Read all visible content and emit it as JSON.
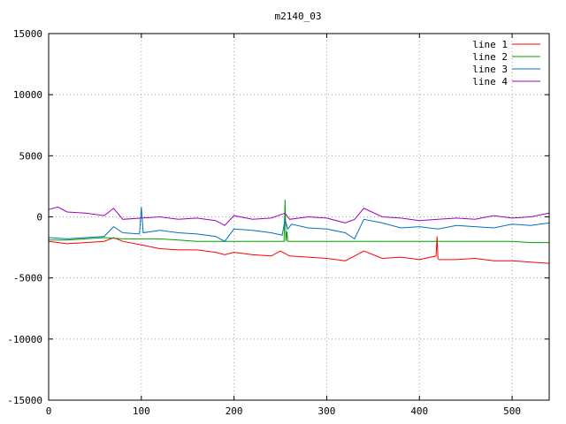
{
  "chart_data": {
    "type": "line",
    "title": "m2140_03",
    "xlabel": "",
    "ylabel": "",
    "xlim": [
      0,
      540
    ],
    "ylim": [
      -15000,
      15000
    ],
    "xticks": [
      0,
      100,
      200,
      300,
      400,
      500
    ],
    "yticks": [
      -15000,
      -10000,
      -5000,
      0,
      5000,
      10000,
      15000
    ],
    "grid": true,
    "legend_position": "top-right",
    "series": [
      {
        "name": "line 1",
        "color": "#ff0000",
        "x": [
          0,
          20,
          40,
          60,
          70,
          80,
          100,
          120,
          140,
          160,
          180,
          190,
          200,
          220,
          240,
          250,
          260,
          280,
          300,
          320,
          330,
          340,
          360,
          380,
          400,
          418,
          419,
          420,
          421,
          440,
          460,
          480,
          500,
          520,
          540
        ],
        "y": [
          -2000,
          -2200,
          -2100,
          -2000,
          -1700,
          -2000,
          -2300,
          -2600,
          -2700,
          -2700,
          -2900,
          -3100,
          -2900,
          -3100,
          -3200,
          -2800,
          -3200,
          -3300,
          -3400,
          -3600,
          -3200,
          -2800,
          -3400,
          -3300,
          -3500,
          -3200,
          -1600,
          -3400,
          -3500,
          -3500,
          -3400,
          -3600,
          -3600,
          -3700,
          -3800
        ]
      },
      {
        "name": "line 2",
        "color": "#00a000",
        "x": [
          0,
          20,
          40,
          60,
          80,
          100,
          120,
          140,
          160,
          180,
          200,
          220,
          240,
          254,
          255,
          256,
          257,
          258,
          260,
          280,
          300,
          320,
          340,
          360,
          380,
          400,
          420,
          440,
          460,
          480,
          500,
          520,
          540
        ],
        "y": [
          -1900,
          -1900,
          -1800,
          -1700,
          -1800,
          -1800,
          -1800,
          -1900,
          -2000,
          -2000,
          -2000,
          -2000,
          -2000,
          -2000,
          1400,
          -2000,
          -1200,
          -2000,
          -2000,
          -2000,
          -2000,
          -2000,
          -2000,
          -2000,
          -2000,
          -2000,
          -2000,
          -2000,
          -2000,
          -2000,
          -2000,
          -2100,
          -2100
        ]
      },
      {
        "name": "line 3",
        "color": "#0070c0",
        "x": [
          0,
          20,
          40,
          60,
          70,
          80,
          98,
          100,
          102,
          120,
          140,
          160,
          180,
          190,
          200,
          220,
          240,
          252,
          255,
          258,
          262,
          280,
          300,
          320,
          330,
          340,
          360,
          380,
          400,
          420,
          440,
          460,
          480,
          500,
          520,
          540
        ],
        "y": [
          -1700,
          -1800,
          -1700,
          -1600,
          -800,
          -1300,
          -1400,
          800,
          -1300,
          -1100,
          -1300,
          -1400,
          -1600,
          -2000,
          -1000,
          -1100,
          -1300,
          -1500,
          -200,
          -1000,
          -600,
          -900,
          -1000,
          -1300,
          -1800,
          -200,
          -500,
          -900,
          -800,
          -1000,
          -700,
          -800,
          -900,
          -600,
          -700,
          -500
        ]
      },
      {
        "name": "line 4",
        "color": "#a000c0",
        "x": [
          0,
          10,
          20,
          40,
          60,
          70,
          80,
          100,
          120,
          140,
          160,
          180,
          190,
          200,
          220,
          240,
          255,
          260,
          280,
          300,
          320,
          330,
          340,
          360,
          380,
          400,
          420,
          440,
          460,
          480,
          500,
          520,
          540
        ],
        "y": [
          600,
          800,
          400,
          300,
          100,
          700,
          -200,
          -100,
          0,
          -200,
          -100,
          -300,
          -700,
          100,
          -200,
          -100,
          300,
          -200,
          0,
          -100,
          -500,
          -200,
          700,
          0,
          -100,
          -300,
          -200,
          -100,
          -200,
          100,
          -100,
          0,
          300
        ]
      }
    ]
  }
}
